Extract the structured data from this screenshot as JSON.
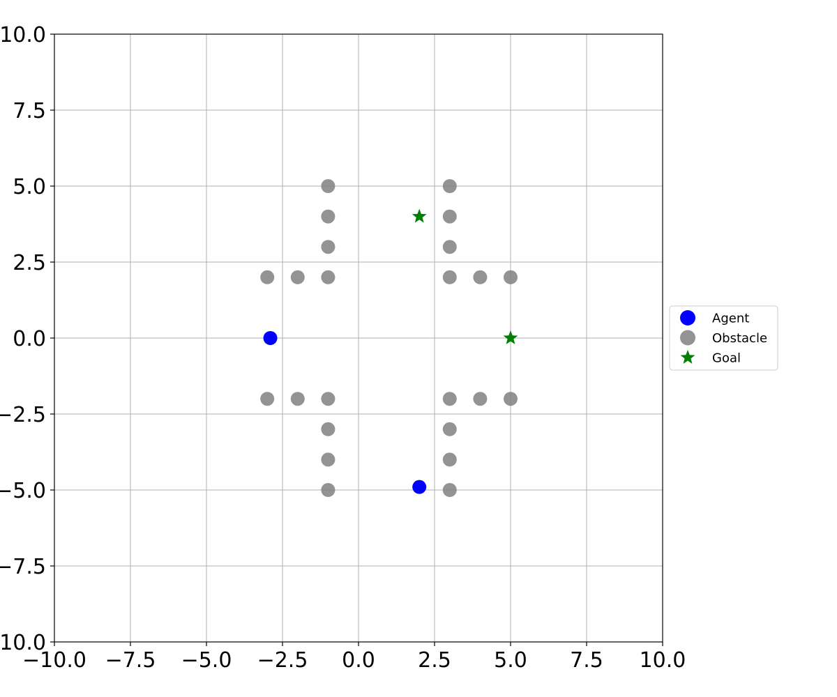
{
  "chart_data": {
    "type": "scatter",
    "title": "",
    "xlabel": "",
    "ylabel": "",
    "xlim": [
      -10,
      10
    ],
    "ylim": [
      -10,
      10
    ],
    "xticks": [
      -10,
      -7.5,
      -5,
      -2.5,
      0,
      2.5,
      5,
      7.5,
      10
    ],
    "yticks": [
      -10,
      -7.5,
      -5,
      -2.5,
      0,
      2.5,
      5,
      7.5,
      10
    ],
    "xtick_labels": [
      "−10.0",
      "−7.5",
      "−5.0",
      "−2.5",
      "0.0",
      "2.5",
      "5.0",
      "7.5",
      "10.0"
    ],
    "ytick_labels": [
      "−10.0",
      "−7.5",
      "−5.0",
      "−2.5",
      "0.0",
      "2.5",
      "5.0",
      "7.5",
      "10.0"
    ],
    "grid": true,
    "legend_position": "right-center, outside plot",
    "series": [
      {
        "name": "Agent",
        "marker": "circle",
        "color": "#0000ff",
        "points": [
          [
            -2.9,
            0.0
          ],
          [
            2.0,
            -4.9
          ]
        ]
      },
      {
        "name": "Obstacle",
        "marker": "circle",
        "color": "#808080",
        "points": [
          [
            -1,
            5
          ],
          [
            -1,
            4
          ],
          [
            -1,
            3
          ],
          [
            -1,
            2
          ],
          [
            -2,
            2
          ],
          [
            -3,
            2
          ],
          [
            3,
            5
          ],
          [
            3,
            4
          ],
          [
            3,
            3
          ],
          [
            3,
            2
          ],
          [
            4,
            2
          ],
          [
            5,
            2
          ],
          [
            -3,
            -2
          ],
          [
            -2,
            -2
          ],
          [
            -1,
            -2
          ],
          [
            -1,
            -3
          ],
          [
            -1,
            -4
          ],
          [
            -1,
            -5
          ],
          [
            3,
            -2
          ],
          [
            4,
            -2
          ],
          [
            5,
            -2
          ],
          [
            3,
            -3
          ],
          [
            3,
            -4
          ],
          [
            3,
            -5
          ]
        ]
      },
      {
        "name": "Goal",
        "marker": "star",
        "color": "#008000",
        "points": [
          [
            2,
            4
          ],
          [
            5,
            0
          ]
        ]
      }
    ]
  }
}
